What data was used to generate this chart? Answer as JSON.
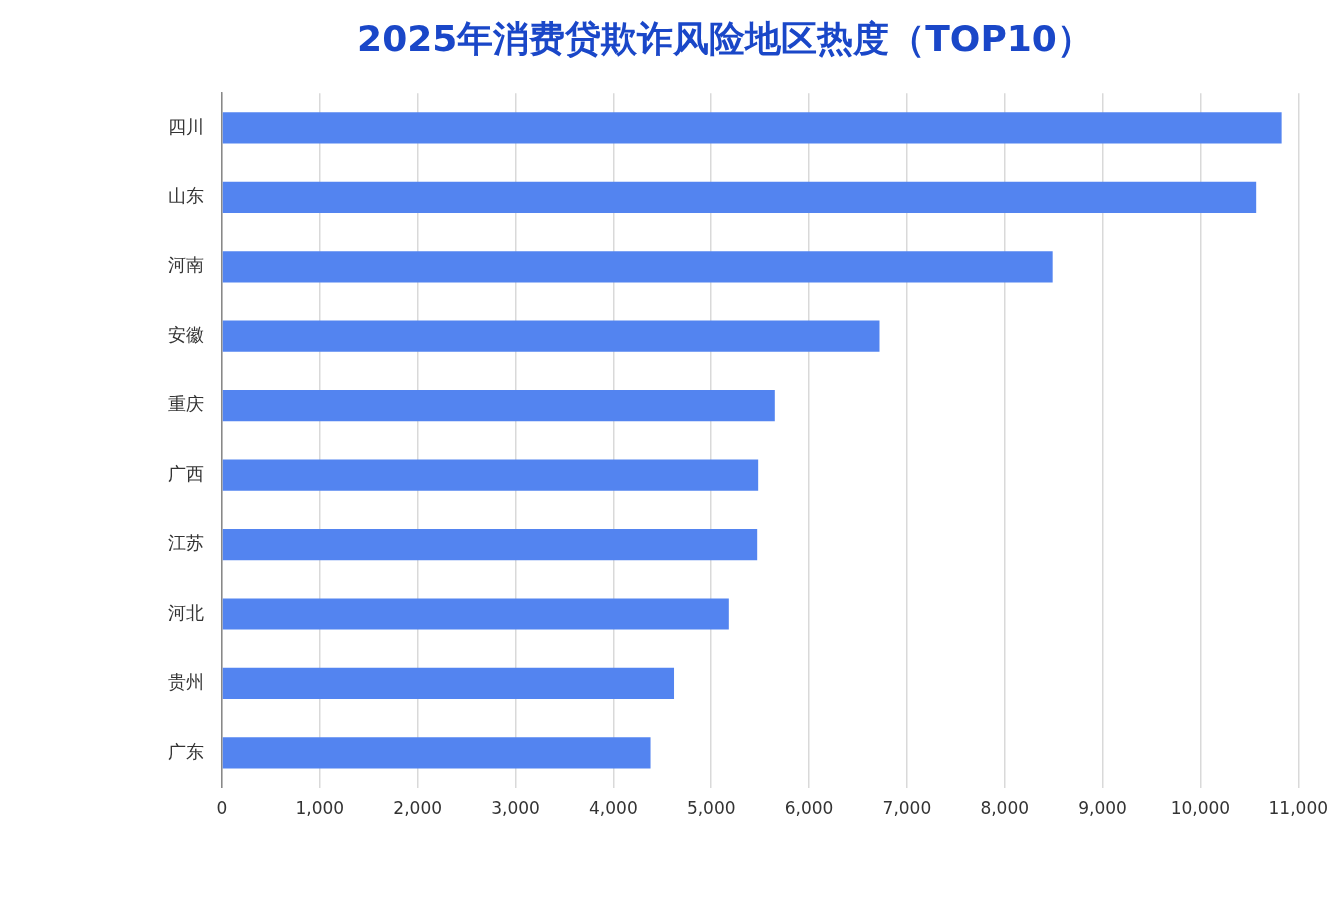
{
  "chart_data": {
    "type": "bar",
    "orientation": "horizontal",
    "title": "2025年消费贷欺诈风险地区热度（TOP10）",
    "categories": [
      "四川",
      "山东",
      "河南",
      "安徽",
      "重庆",
      "广西",
      "江苏",
      "河北",
      "贵州",
      "广东"
    ],
    "values": [
      10830,
      10570,
      8490,
      6720,
      5650,
      5480,
      5470,
      5180,
      4620,
      4380
    ],
    "color": "#5384f0",
    "xlim": [
      0,
      11000
    ],
    "xticks": [
      {
        "value": 0,
        "label": "0"
      },
      {
        "value": 1000,
        "label": "1,000"
      },
      {
        "value": 2000,
        "label": "2,000"
      },
      {
        "value": 3000,
        "label": "3,000"
      },
      {
        "value": 4000,
        "label": "4,000"
      },
      {
        "value": 5000,
        "label": "5,000"
      },
      {
        "value": 6000,
        "label": "6,000"
      },
      {
        "value": 7000,
        "label": "7,000"
      },
      {
        "value": 8000,
        "label": "8,000"
      },
      {
        "value": 9000,
        "label": "9,000"
      },
      {
        "value": 10000,
        "label": "10,000"
      },
      {
        "value": 11000,
        "label": "11,000"
      }
    ],
    "grid": "x",
    "legend": false
  }
}
